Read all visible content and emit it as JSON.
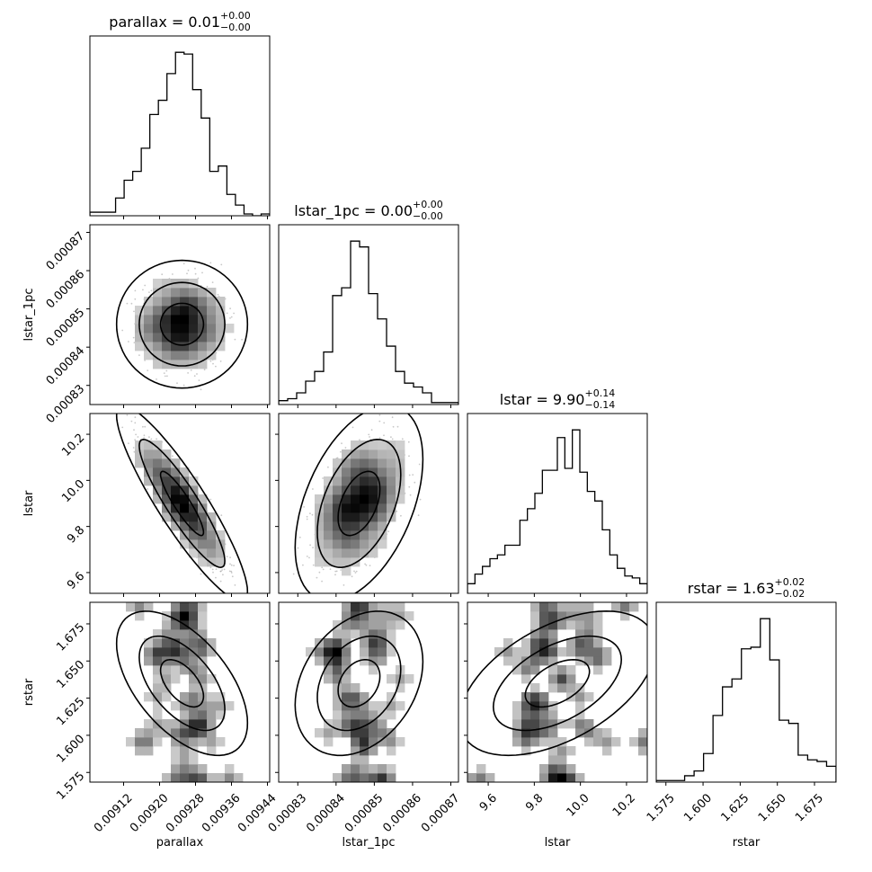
{
  "chart_data": {
    "type": "corner",
    "parameters": [
      {
        "name": "parallax",
        "range": [
          0.009045,
          0.009445
        ],
        "ticks": [
          0.00912,
          0.0092,
          0.00928,
          0.00936,
          0.00944
        ],
        "tick_labels": [
          "0.00912",
          "0.00920",
          "0.00928",
          "0.00936",
          "0.00944"
        ]
      },
      {
        "name": "lstar_1pc",
        "range": [
          0.000825,
          0.000872
        ],
        "ticks": [
          0.00083,
          0.00084,
          0.00085,
          0.00086,
          0.00087
        ],
        "tick_labels": [
          "0.00083",
          "0.00084",
          "0.00085",
          "0.00086",
          "0.00087"
        ]
      },
      {
        "name": "lstar",
        "range": [
          9.51,
          10.29
        ],
        "ticks": [
          9.6,
          9.8,
          10.0,
          10.2
        ],
        "tick_labels": [
          "9.6",
          "9.8",
          "10.0",
          "10.2"
        ]
      },
      {
        "name": "rstar",
        "range": [
          1.5685,
          1.6895
        ],
        "ticks": [
          1.575,
          1.6,
          1.625,
          1.65,
          1.675
        ],
        "tick_labels": [
          "1.575",
          "1.600",
          "1.625",
          "1.650",
          "1.675"
        ]
      }
    ],
    "titles": [
      {
        "main": "parallax = 0.01",
        "plus": "+0.00",
        "minus": "−0.00"
      },
      {
        "main": "lstar_1pc = 0.00",
        "plus": "+0.00",
        "minus": "−0.00"
      },
      {
        "main": "lstar = 9.90",
        "plus": "+0.14",
        "minus": "−0.14"
      },
      {
        "main": "rstar = 1.63",
        "plus": "+0.02",
        "minus": "−0.02"
      }
    ],
    "histograms": [
      [
        2,
        2,
        2,
        10,
        20,
        25,
        38,
        57,
        65,
        80,
        92,
        91,
        71,
        55,
        25,
        28,
        12,
        6,
        1,
        0,
        1
      ],
      [
        2,
        3,
        6,
        12,
        17,
        27,
        56,
        60,
        84,
        81,
        57,
        44,
        30,
        17,
        11,
        9,
        6,
        1,
        1,
        1
      ],
      [
        5,
        10,
        14,
        18,
        20,
        25,
        25,
        38,
        44,
        52,
        64,
        64,
        81,
        65,
        85,
        63,
        53,
        48,
        33,
        20,
        13,
        9,
        8,
        5
      ],
      [
        1,
        1,
        1,
        4,
        7,
        18,
        42,
        60,
        65,
        84,
        85,
        103,
        77,
        39,
        37,
        17,
        14,
        13,
        10
      ]
    ],
    "correlations": [
      [
        1,
        0,
        -0.9,
        -0.55
      ],
      [
        0,
        1,
        0.45,
        0.3
      ],
      [
        -0.9,
        0.45,
        1,
        0.5
      ],
      [
        -0.55,
        0.3,
        0.5,
        1
      ]
    ],
    "medians": [
      0.00925,
      0.000846,
      9.9,
      1.635
    ],
    "sigmas": [
      4.8e-05,
      5.5e-06,
      0.14,
      0.016
    ],
    "levels": [
      0.39,
      0.86,
      0.99
    ],
    "grid": false,
    "legend": "none"
  }
}
